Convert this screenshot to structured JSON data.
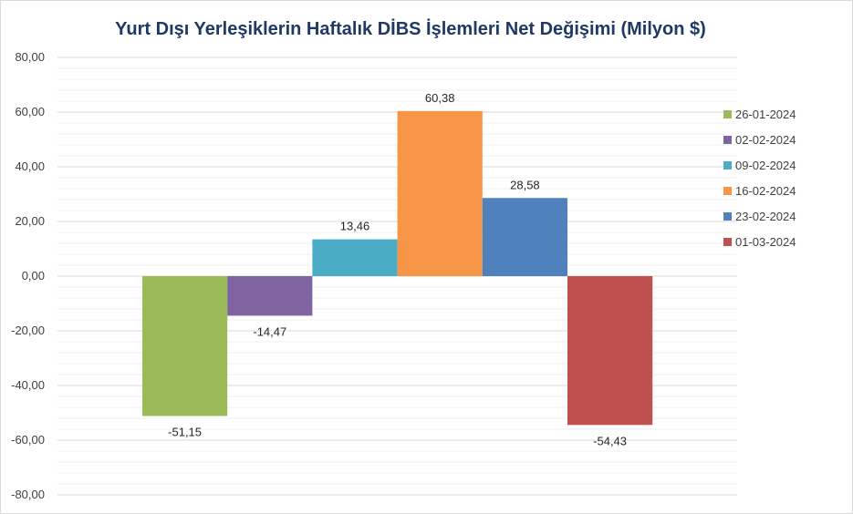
{
  "chart_data": {
    "type": "bar",
    "title": "Yurt Dışı Yerleşiklerin Haftalık DİBS İşlemleri Net Değişimi (Milyon $)",
    "xlabel": "",
    "ylabel": "",
    "ylim": [
      -80,
      80
    ],
    "y_ticks": [
      "80,00",
      "60,00",
      "40,00",
      "20,00",
      "0,00",
      "-20,00",
      "-40,00",
      "-60,00",
      "-80,00"
    ],
    "y_tick_values": [
      80,
      60,
      40,
      20,
      0,
      -20,
      -40,
      -60,
      -80
    ],
    "grid": true,
    "legend_position": "right",
    "series": [
      {
        "name": "26-01-2024",
        "values": [
          -51.15
        ],
        "label": "-51,15",
        "color": "#9bbb59"
      },
      {
        "name": "02-02-2024",
        "values": [
          -14.47
        ],
        "label": "-14,47",
        "color": "#8064a2"
      },
      {
        "name": "09-02-2024",
        "values": [
          13.46
        ],
        "label": "13,46",
        "color": "#4bacc6"
      },
      {
        "name": "16-02-2024",
        "values": [
          60.38
        ],
        "label": "60,38",
        "color": "#f79646"
      },
      {
        "name": "23-02-2024",
        "values": [
          28.58
        ],
        "label": "28,58",
        "color": "#4f81bd"
      },
      {
        "name": "01-03-2024",
        "values": [
          -54.43
        ],
        "label": "-54,43",
        "color": "#c0504d"
      }
    ]
  }
}
